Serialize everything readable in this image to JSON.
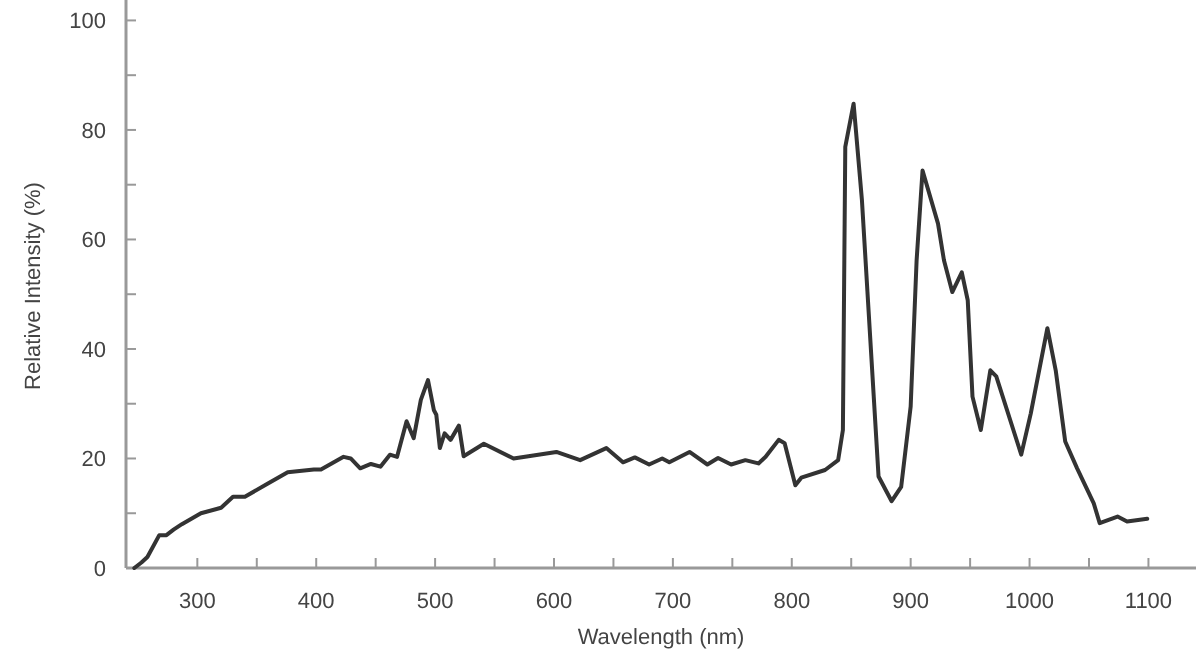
{
  "chart_data": {
    "type": "line",
    "xlabel": "Wavelength (nm)",
    "ylabel": "Relative Intensity (%)",
    "xlim": [
      240,
      1140
    ],
    "ylim": [
      0,
      103
    ],
    "xticks": [
      300,
      {
        "value": 350,
        "label": null
      },
      400,
      {
        "value": 450,
        "label": null
      },
      500,
      {
        "value": 550,
        "label": null
      },
      600,
      {
        "value": 650,
        "label": null
      },
      700,
      {
        "value": 750,
        "label": null
      },
      800,
      {
        "value": 850,
        "label": null
      },
      900,
      {
        "value": 950,
        "label": null
      },
      1000,
      {
        "value": 1050,
        "label": null
      },
      1100
    ],
    "yticks": [
      0,
      {
        "value": 10,
        "label": null
      },
      20,
      {
        "value": 30,
        "label": null
      },
      40,
      {
        "value": 50,
        "label": null
      },
      60,
      {
        "value": 70,
        "label": null
      },
      80,
      {
        "value": 90,
        "label": null
      },
      100
    ],
    "grid": false,
    "marker": "none",
    "line_style": "solid",
    "series": [
      {
        "color": "#333333",
        "x": [
          247,
          253,
          258,
          268,
          274,
          280,
          287,
          303,
          320,
          330,
          340,
          359,
          376,
          398,
          404,
          423,
          429,
          437,
          446,
          454,
          462,
          468,
          476,
          482,
          488,
          494,
          499,
          501,
          504,
          508,
          513,
          520,
          524,
          541,
          566,
          602,
          622,
          644,
          658,
          668,
          680,
          691,
          697,
          714,
          729,
          738,
          749,
          761,
          772,
          778,
          789,
          794,
          803,
          808,
          828,
          839,
          843,
          845,
          852,
          859,
          873,
          884,
          892,
          900,
          905,
          910,
          923,
          928,
          935,
          943,
          948,
          952,
          959,
          967,
          972,
          993,
          1001,
          1015,
          1022,
          1030,
          1040,
          1054,
          1059,
          1074,
          1082,
          1099
        ],
        "values": [
          0,
          1,
          2,
          6,
          6,
          7,
          8,
          10,
          11,
          13,
          13,
          15.4,
          17.5,
          18,
          18,
          20.3,
          20,
          18.2,
          19,
          18.5,
          20.7,
          20.3,
          26.8,
          23.7,
          30.7,
          34.3,
          28.8,
          28,
          21.9,
          24.6,
          23.4,
          26,
          20.4,
          22.7,
          20,
          21.2,
          19.7,
          21.9,
          19.3,
          20.2,
          18.9,
          20,
          19.3,
          21.2,
          18.9,
          20.1,
          18.9,
          19.7,
          19.1,
          20.3,
          23.4,
          22.8,
          15.1,
          16.5,
          17.9,
          19.7,
          25.2,
          76.9,
          84.8,
          67.2,
          16.7,
          12.2,
          14.8,
          29.5,
          56.2,
          72.6,
          62.9,
          56.2,
          50.4,
          54,
          48.9,
          31.3,
          25.2,
          36.1,
          35,
          20.7,
          28.2,
          43.8,
          36.1,
          23.1,
          18.2,
          11.8,
          8.2,
          9.4,
          8.5,
          9
        ]
      }
    ]
  }
}
